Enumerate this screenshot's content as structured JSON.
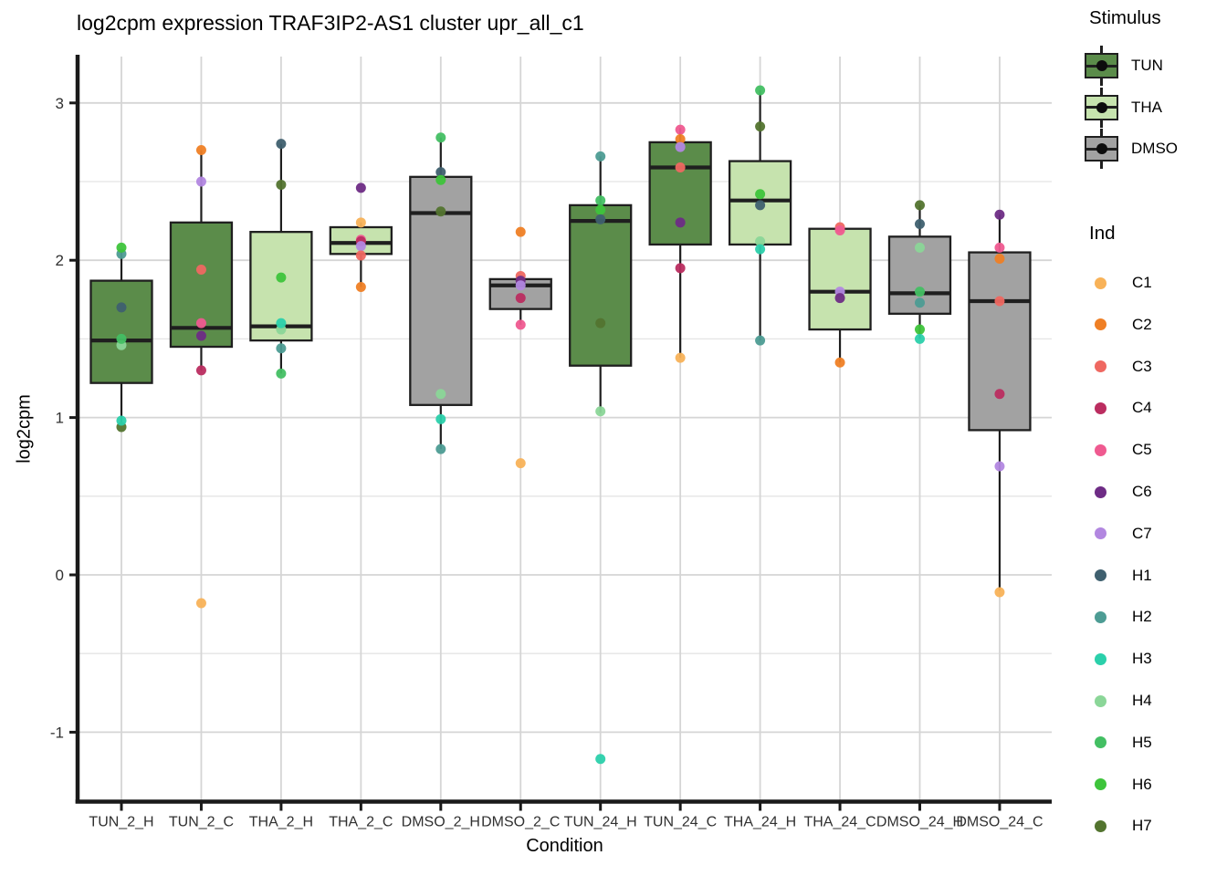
{
  "title": "log2cpm expression TRAF3IP2-AS1 cluster upr_all_c1",
  "axes": {
    "x_title": "Condition",
    "y_title": "log2cpm",
    "y_tick_labels": [
      "3",
      "2",
      "1",
      "0",
      "-1"
    ]
  },
  "legend": {
    "stimulus_title": "Stimulus",
    "stimulus": [
      {
        "label": "TUN",
        "color": "#5B8C4A"
      },
      {
        "label": "THA",
        "color": "#C6E3AE"
      },
      {
        "label": "DMSO",
        "color": "#A2A2A2"
      }
    ],
    "ind_title": "Ind",
    "ind": [
      {
        "label": "C1",
        "color": "#F8B258"
      },
      {
        "label": "C2",
        "color": "#EF7F25"
      },
      {
        "label": "C3",
        "color": "#EF6861"
      },
      {
        "label": "C4",
        "color": "#BB2D60"
      },
      {
        "label": "C5",
        "color": "#EF5A90"
      },
      {
        "label": "C6",
        "color": "#6E2C85"
      },
      {
        "label": "C7",
        "color": "#B287E0"
      },
      {
        "label": "H1",
        "color": "#3F606F"
      },
      {
        "label": "H2",
        "color": "#4D9C94"
      },
      {
        "label": "H3",
        "color": "#2BD0AB"
      },
      {
        "label": "H4",
        "color": "#8BD698"
      },
      {
        "label": "H5",
        "color": "#43BF63"
      },
      {
        "label": "H6",
        "color": "#3EC43B"
      },
      {
        "label": "H7",
        "color": "#53742F"
      }
    ]
  },
  "colors": {
    "box_outline": "#1F1F1F",
    "grid_major": "#D5D5D5",
    "grid_minor": "#E4E4E4",
    "axis_line": "#1A1A1A",
    "tick_label": "#303030"
  },
  "chart_data": {
    "type": "boxplot",
    "title": "log2cpm expression TRAF3IP2-AS1 cluster upr_all_c1",
    "xlabel": "Condition",
    "ylabel": "log2cpm",
    "ylim": [
      -1.44,
      3.29
    ],
    "y_major_gridlines": [
      3,
      2,
      1,
      0,
      -1
    ],
    "y_minor_gridlines": [
      2.5,
      1.5,
      0.5,
      -0.5
    ],
    "legend_position": "right",
    "groups": [
      {
        "condition": "TUN_2_H",
        "stimulus": "TUN",
        "q1": 1.22,
        "median": 1.49,
        "q3": 1.87,
        "whisker_low": 0.96,
        "whisker_high": 2.05,
        "points": [
          {
            "ind": "H2",
            "value": 2.04
          },
          {
            "ind": "H6",
            "value": 2.08
          },
          {
            "ind": "H1",
            "value": 1.7
          },
          {
            "ind": "H4",
            "value": 1.46
          },
          {
            "ind": "H5",
            "value": 1.5
          },
          {
            "ind": "H7",
            "value": 0.94
          },
          {
            "ind": "H3",
            "value": 0.98
          }
        ]
      },
      {
        "condition": "TUN_2_C",
        "stimulus": "TUN",
        "q1": 1.45,
        "median": 1.57,
        "q3": 2.24,
        "whisker_low": 1.3,
        "whisker_high": 2.7,
        "points": [
          {
            "ind": "C2",
            "value": 2.7
          },
          {
            "ind": "C7",
            "value": 2.5
          },
          {
            "ind": "C3",
            "value": 1.94
          },
          {
            "ind": "C5",
            "value": 1.6
          },
          {
            "ind": "C6",
            "value": 1.52
          },
          {
            "ind": "C4",
            "value": 1.3
          },
          {
            "ind": "C1",
            "value": -0.18
          }
        ]
      },
      {
        "condition": "THA_2_H",
        "stimulus": "THA",
        "q1": 1.49,
        "median": 1.58,
        "q3": 2.18,
        "whisker_low": 1.28,
        "whisker_high": 2.74,
        "points": [
          {
            "ind": "H1",
            "value": 2.74
          },
          {
            "ind": "H7",
            "value": 2.48
          },
          {
            "ind": "H6",
            "value": 1.89
          },
          {
            "ind": "H4",
            "value": 1.56
          },
          {
            "ind": "H3",
            "value": 1.6
          },
          {
            "ind": "H2",
            "value": 1.44
          },
          {
            "ind": "H5",
            "value": 1.28
          }
        ]
      },
      {
        "condition": "THA_2_C",
        "stimulus": "THA",
        "q1": 2.04,
        "median": 2.11,
        "q3": 2.21,
        "whisker_low": 1.83,
        "whisker_high": 2.24,
        "points": [
          {
            "ind": "C6",
            "value": 2.46
          },
          {
            "ind": "C1",
            "value": 2.24
          },
          {
            "ind": "C5",
            "value": 2.13
          },
          {
            "ind": "C4",
            "value": 2.12
          },
          {
            "ind": "C7",
            "value": 2.09
          },
          {
            "ind": "C3",
            "value": 2.03
          },
          {
            "ind": "C2",
            "value": 1.83
          }
        ]
      },
      {
        "condition": "DMSO_2_H",
        "stimulus": "DMSO",
        "q1": 1.08,
        "median": 2.3,
        "q3": 2.53,
        "whisker_low": 0.8,
        "whisker_high": 2.78,
        "points": [
          {
            "ind": "H5",
            "value": 2.78
          },
          {
            "ind": "H1",
            "value": 2.56
          },
          {
            "ind": "H6",
            "value": 2.51
          },
          {
            "ind": "H7",
            "value": 2.31
          },
          {
            "ind": "H4",
            "value": 1.15
          },
          {
            "ind": "H3",
            "value": 0.99
          },
          {
            "ind": "H2",
            "value": 0.8
          }
        ]
      },
      {
        "condition": "DMSO_2_C",
        "stimulus": "DMSO",
        "q1": 1.69,
        "median": 1.84,
        "q3": 1.88,
        "whisker_low": 1.59,
        "whisker_high": 1.88,
        "points": [
          {
            "ind": "C2",
            "value": 2.18
          },
          {
            "ind": "C3",
            "value": 1.9
          },
          {
            "ind": "C6",
            "value": 1.87
          },
          {
            "ind": "C7",
            "value": 1.84
          },
          {
            "ind": "C4",
            "value": 1.76
          },
          {
            "ind": "C5",
            "value": 1.59
          },
          {
            "ind": "C1",
            "value": 0.71
          }
        ]
      },
      {
        "condition": "TUN_24_H",
        "stimulus": "TUN",
        "q1": 1.33,
        "median": 2.25,
        "q3": 2.35,
        "whisker_low": 1.03,
        "whisker_high": 2.66,
        "points": [
          {
            "ind": "H2",
            "value": 2.66
          },
          {
            "ind": "H5",
            "value": 2.38
          },
          {
            "ind": "H6",
            "value": 2.32
          },
          {
            "ind": "H1",
            "value": 2.26
          },
          {
            "ind": "H7",
            "value": 1.6
          },
          {
            "ind": "H4",
            "value": 1.04
          },
          {
            "ind": "H3",
            "value": -1.17
          }
        ]
      },
      {
        "condition": "TUN_24_C",
        "stimulus": "TUN",
        "q1": 2.1,
        "median": 2.59,
        "q3": 2.75,
        "whisker_low": 1.38,
        "whisker_high": 2.84,
        "points": [
          {
            "ind": "C5",
            "value": 2.83
          },
          {
            "ind": "C2",
            "value": 2.77
          },
          {
            "ind": "C7",
            "value": 2.72
          },
          {
            "ind": "C3",
            "value": 2.59
          },
          {
            "ind": "C6",
            "value": 2.24
          },
          {
            "ind": "C4",
            "value": 1.95
          },
          {
            "ind": "C1",
            "value": 1.38
          }
        ]
      },
      {
        "condition": "THA_24_H",
        "stimulus": "THA",
        "q1": 2.1,
        "median": 2.38,
        "q3": 2.63,
        "whisker_low": 1.49,
        "whisker_high": 3.08,
        "points": [
          {
            "ind": "H5",
            "value": 3.08
          },
          {
            "ind": "H7",
            "value": 2.85
          },
          {
            "ind": "H1",
            "value": 2.35
          },
          {
            "ind": "H6",
            "value": 2.42
          },
          {
            "ind": "H4",
            "value": 2.12
          },
          {
            "ind": "H3",
            "value": 2.07
          },
          {
            "ind": "H2",
            "value": 1.49
          }
        ]
      },
      {
        "condition": "THA_24_C",
        "stimulus": "THA",
        "q1": 1.56,
        "median": 1.8,
        "q3": 2.2,
        "whisker_low": 1.35,
        "whisker_high": 2.2,
        "points": [
          {
            "ind": "C3",
            "value": 2.21
          },
          {
            "ind": "C5",
            "value": 2.19
          },
          {
            "ind": "C7",
            "value": 1.8
          },
          {
            "ind": "C6",
            "value": 1.76
          },
          {
            "ind": "C2",
            "value": 1.35
          }
        ]
      },
      {
        "condition": "DMSO_24_H",
        "stimulus": "DMSO",
        "q1": 1.66,
        "median": 1.79,
        "q3": 2.15,
        "whisker_low": 1.5,
        "whisker_high": 2.35,
        "points": [
          {
            "ind": "H7",
            "value": 2.35
          },
          {
            "ind": "H1",
            "value": 2.23
          },
          {
            "ind": "H4",
            "value": 2.08
          },
          {
            "ind": "H5",
            "value": 1.8
          },
          {
            "ind": "H2",
            "value": 1.73
          },
          {
            "ind": "H6",
            "value": 1.56
          },
          {
            "ind": "H3",
            "value": 1.5
          }
        ]
      },
      {
        "condition": "DMSO_24_C",
        "stimulus": "DMSO",
        "q1": 0.92,
        "median": 1.74,
        "q3": 2.05,
        "whisker_low": -0.1,
        "whisker_high": 2.29,
        "points": [
          {
            "ind": "C6",
            "value": 2.29
          },
          {
            "ind": "C2",
            "value": 2.01
          },
          {
            "ind": "C5",
            "value": 2.08
          },
          {
            "ind": "C3",
            "value": 1.74
          },
          {
            "ind": "C4",
            "value": 1.15
          },
          {
            "ind": "C7",
            "value": 0.69
          },
          {
            "ind": "C1",
            "value": -0.11
          }
        ]
      }
    ]
  }
}
